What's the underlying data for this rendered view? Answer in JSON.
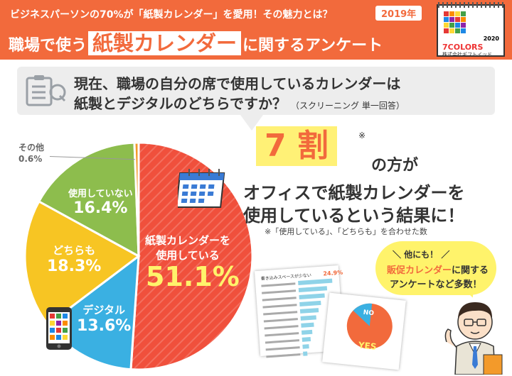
{
  "header": {
    "subtitle": "ビジネスパーソンの70%が「紙製カレンダー」を愛用！その魅力とは？",
    "year_badge": "2019年",
    "title_before": "職場で使う",
    "title_accent": "紙製カレンダー",
    "title_after": "に関するアンケート"
  },
  "product": {
    "year": "2020",
    "brand": "7COLORS",
    "maker": "株式会社ギフトイッド"
  },
  "question": {
    "line1": "現在、職場の自分の席で使用しているカレンダーは",
    "line2": "紙製とデジタルのどちらですか？",
    "note": "（スクリーニング 単一回答）"
  },
  "chart_data": {
    "type": "pie",
    "slices": [
      {
        "label": "紙製カレンダーを使用している",
        "value": 51.1,
        "display": "51.1%",
        "color": "#f0503c"
      },
      {
        "label": "デジタル",
        "value": 13.6,
        "display": "13.6%",
        "color": "#3ab0e2"
      },
      {
        "label": "どちらも",
        "value": 18.3,
        "display": "18.3%",
        "color": "#f7c523"
      },
      {
        "label": "使用していない",
        "value": 16.4,
        "display": "16.4%",
        "color": "#8dbd4d"
      },
      {
        "label": "その他",
        "value": 0.6,
        "display": "0.6%",
        "color": "#f39a2a"
      }
    ],
    "labels": {
      "paper_line1": "紙製カレンダーを",
      "paper_line2": "使用している",
      "paper_pct": "51.1%",
      "digital": "デジタル",
      "digital_pct": "13.6%",
      "both": "どちらも",
      "both_pct": "18.3%",
      "notused": "使用していない",
      "notused_pct": "16.4%",
      "other": "その他",
      "other_pct": "0.6%"
    }
  },
  "headline": {
    "big": "7 割",
    "asterisk": "※",
    "line1": "の方が",
    "line2": "オフィスで紙製カレンダーを",
    "line3": "使用しているという結果に！",
    "note": "※「使用している」、「どちらも」を合わせた数"
  },
  "bubble": {
    "line1": "＼ 他にも！ ／",
    "highlight": "販促カレンダー",
    "line2_rest": "に関する",
    "line3": "アンケートなど多数！"
  },
  "mini_docs": {
    "doc1_title": "書き込みスペースが少ない",
    "doc1_pct": "24.9%",
    "doc2_no": "NO",
    "doc2_yes": "YES"
  },
  "colors": {
    "brand_orange": "#f26a3c",
    "highlight_yellow": "#fff176",
    "paper_red": "#f0503c",
    "digital_blue": "#3ab0e2",
    "both_yellow": "#f7c523",
    "notused_green": "#8dbd4d",
    "other_orange": "#f39a2a"
  }
}
